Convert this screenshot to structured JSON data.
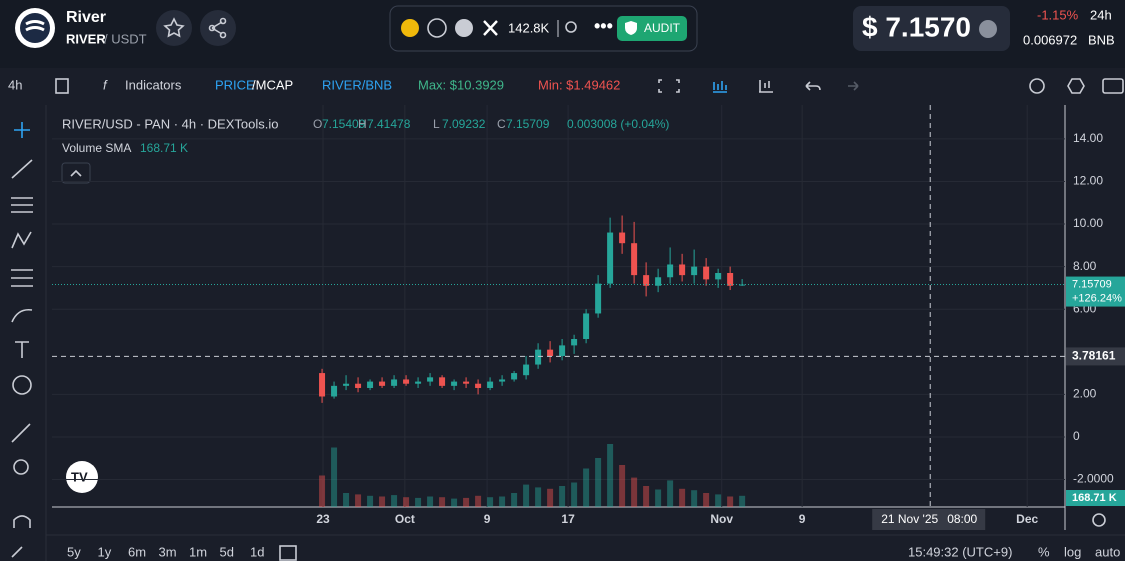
{
  "header": {
    "name": "River",
    "pair_base": "RIVER",
    "pair_quote": "/ USDT",
    "followers": "142.8K",
    "audit": "AUDIT",
    "price": "$ 7.1570",
    "change": "-1.15%",
    "period": "24h",
    "bnb_price": "0.006972",
    "bnb": "BNB"
  },
  "toolbar": {
    "interval": "4h",
    "indicators": "Indicators",
    "price": "PRICE",
    "mcap": "/MCAP",
    "pair": "RIVER/BNB",
    "max": "Max: $10.3929",
    "min": "Min: $1.49462"
  },
  "bottom": {
    "ranges": [
      "5y",
      "1y",
      "6m",
      "3m",
      "1m",
      "5d",
      "1d"
    ],
    "clock": "15:49:32 (UTC+9)",
    "percent": "%",
    "log": "log",
    "auto": "auto"
  },
  "chart_data": {
    "type": "candlestick",
    "title": "RIVER/USD - PAN · 4h · DEXTools.io",
    "ohlc_letters": [
      "O",
      "H",
      "L",
      "C"
    ],
    "change": "0.003008 (+0.04%)",
    "volume_label": "Volume SMA",
    "volume_sma": "168.71 K",
    "last_change": "+126.24%",
    "up_color": "#26a69a",
    "down_color": "#ef5350",
    "crosshair": {
      "x": 50.67,
      "y": 3.78161,
      "date": "21 Nov '25",
      "time": "08:00"
    },
    "candles": [
      [
        3.0,
        3.2,
        1.6,
        1.9
      ],
      [
        1.9,
        2.6,
        1.8,
        2.4
      ],
      [
        2.4,
        2.9,
        2.2,
        2.5
      ],
      [
        2.5,
        2.8,
        2.1,
        2.3
      ],
      [
        2.3,
        2.7,
        2.2,
        2.6
      ],
      [
        2.6,
        2.8,
        2.3,
        2.4
      ],
      [
        2.4,
        2.9,
        2.3,
        2.7
      ],
      [
        2.7,
        2.9,
        2.4,
        2.5
      ],
      [
        2.5,
        2.8,
        2.3,
        2.6
      ],
      [
        2.6,
        3.0,
        2.4,
        2.8
      ],
      [
        2.8,
        2.9,
        2.3,
        2.4
      ],
      [
        2.4,
        2.7,
        2.2,
        2.6
      ],
      [
        2.6,
        2.8,
        2.3,
        2.5
      ],
      [
        2.5,
        2.7,
        2.0,
        2.3
      ],
      [
        2.3,
        2.8,
        2.2,
        2.6
      ],
      [
        2.6,
        2.9,
        2.4,
        2.7
      ],
      [
        2.7,
        3.1,
        2.6,
        3.0
      ],
      [
        2.9,
        3.8,
        2.7,
        3.4
      ],
      [
        3.4,
        4.4,
        3.2,
        4.1
      ],
      [
        4.1,
        4.5,
        3.5,
        3.8
      ],
      [
        3.8,
        4.6,
        3.6,
        4.3
      ],
      [
        4.3,
        4.8,
        3.9,
        4.6
      ],
      [
        4.6,
        6.0,
        4.4,
        5.8
      ],
      [
        5.8,
        7.6,
        5.6,
        7.2
      ],
      [
        7.2,
        10.3,
        7.0,
        9.6
      ],
      [
        9.6,
        10.4,
        8.6,
        9.1
      ],
      [
        9.1,
        10.1,
        7.2,
        7.6
      ],
      [
        7.6,
        8.2,
        6.6,
        7.1
      ],
      [
        7.1,
        7.9,
        6.8,
        7.5
      ],
      [
        7.5,
        8.9,
        7.2,
        8.1
      ],
      [
        8.1,
        8.6,
        7.3,
        7.6
      ],
      [
        7.6,
        8.8,
        7.2,
        8.0
      ],
      [
        8.0,
        8.4,
        7.1,
        7.4
      ],
      [
        7.4,
        7.9,
        7.0,
        7.7
      ],
      [
        7.7,
        8.0,
        6.9,
        7.1
      ],
      [
        7.15409,
        7.41478,
        7.09232,
        7.15709
      ]
    ],
    "volumes": [
      450,
      850,
      200,
      180,
      160,
      150,
      170,
      140,
      130,
      150,
      140,
      120,
      130,
      160,
      140,
      150,
      200,
      320,
      280,
      260,
      300,
      350,
      550,
      700,
      900,
      600,
      420,
      300,
      250,
      380,
      260,
      240,
      200,
      180,
      150,
      160
    ],
    "vlim": [
      0,
      1000
    ],
    "xlim": [
      -22.5,
      61.9
    ],
    "xticks": [
      {
        "value": 0.08,
        "label": "23"
      },
      {
        "value": 6.9,
        "label": "Oct"
      },
      {
        "value": 13.75,
        "label": "9"
      },
      {
        "value": 20.5,
        "label": "17"
      },
      {
        "value": 33.3,
        "label": "Nov"
      },
      {
        "value": 40,
        "label": "9"
      },
      {
        "value": 58.75,
        "label": "Dec"
      }
    ],
    "ylim": [
      -3.29,
      15.59
    ],
    "yticks": [
      {
        "value": 14,
        "label": "14.00"
      },
      {
        "value": 12,
        "label": "12.00"
      },
      {
        "value": 10,
        "label": "10.00"
      },
      {
        "value": 8,
        "label": "8.00"
      },
      {
        "value": 6,
        "label": "6.00"
      },
      {
        "value": 2,
        "label": "2.00"
      },
      0,
      {
        "value": -2,
        "label": "-2.0000"
      }
    ]
  }
}
